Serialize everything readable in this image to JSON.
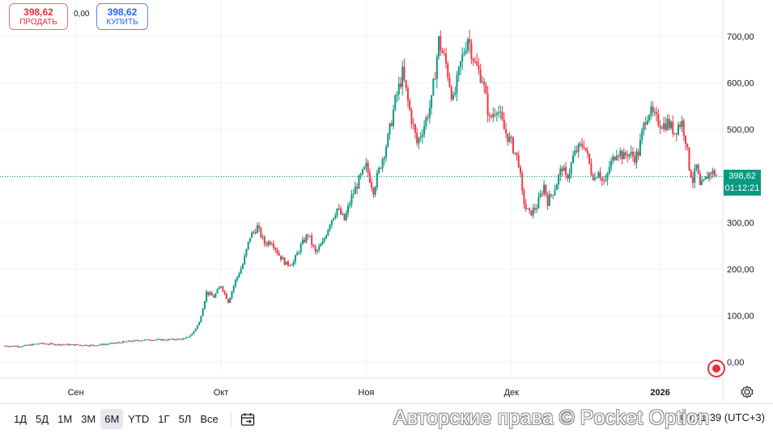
{
  "trade": {
    "sell_price": "398,62",
    "sell_label": "ПРОДАТЬ",
    "buy_price": "398,62",
    "buy_label": "КУПИТЬ",
    "spread": "0,00"
  },
  "last_price": {
    "value": "398,62",
    "countdown": "01:12:21",
    "color": "#089981"
  },
  "colors": {
    "up": "#089981",
    "down": "#f23645",
    "grid": "#f0f3fa",
    "sell": "#e0313b",
    "buy": "#2962ff"
  },
  "chart_data": {
    "type": "candlestick",
    "title": "",
    "x_tick_labels": [
      "Сен",
      "Окт",
      "Ноя",
      "Дек",
      "2026"
    ],
    "y_tick_labels": [
      "700,00",
      "600,00",
      "500,00",
      "400,00",
      "300,00",
      "200,00",
      "100,00",
      "0,00"
    ],
    "ylim": [
      -30,
      760
    ],
    "grid": true,
    "last_price": 398.62,
    "series": [
      {
        "close_path": [
          [
            0,
            35
          ],
          [
            5,
            34
          ],
          [
            10,
            40
          ],
          [
            15,
            38
          ],
          [
            20,
            37
          ],
          [
            25,
            36
          ],
          [
            30,
            40
          ],
          [
            35,
            45
          ],
          [
            40,
            48
          ],
          [
            45,
            48
          ],
          [
            50,
            50
          ],
          [
            52,
            60
          ],
          [
            54,
            85
          ],
          [
            56,
            150
          ],
          [
            58,
            140
          ],
          [
            60,
            165
          ],
          [
            62,
            130
          ],
          [
            64,
            175
          ],
          [
            66,
            210
          ],
          [
            68,
            270
          ],
          [
            70,
            290
          ],
          [
            72,
            255
          ],
          [
            74,
            260
          ],
          [
            76,
            230
          ],
          [
            78,
            210
          ],
          [
            80,
            215
          ],
          [
            82,
            250
          ],
          [
            84,
            275
          ],
          [
            86,
            235
          ],
          [
            88,
            255
          ],
          [
            90,
            300
          ],
          [
            92,
            330
          ],
          [
            94,
            305
          ],
          [
            96,
            355
          ],
          [
            98,
            390
          ],
          [
            100,
            420
          ],
          [
            102,
            370
          ],
          [
            104,
            425
          ],
          [
            106,
            480
          ],
          [
            108,
            560
          ],
          [
            110,
            620
          ],
          [
            112,
            540
          ],
          [
            114,
            470
          ],
          [
            116,
            510
          ],
          [
            118,
            560
          ],
          [
            120,
            690
          ],
          [
            122,
            640
          ],
          [
            124,
            560
          ],
          [
            126,
            640
          ],
          [
            128,
            700
          ],
          [
            130,
            640
          ],
          [
            132,
            610
          ],
          [
            134,
            520
          ],
          [
            136,
            550
          ],
          [
            138,
            500
          ],
          [
            140,
            470
          ],
          [
            142,
            430
          ],
          [
            143,
            360
          ],
          [
            144,
            330
          ],
          [
            145,
            318
          ],
          [
            147,
            335
          ],
          [
            149,
            380
          ],
          [
            150,
            345
          ],
          [
            151,
            360
          ],
          [
            152,
            375
          ],
          [
            154,
            420
          ],
          [
            155,
            395
          ],
          [
            156,
            410
          ],
          [
            157,
            440
          ],
          [
            158,
            455
          ],
          [
            160,
            470
          ],
          [
            161,
            440
          ],
          [
            162,
            410
          ],
          [
            163,
            395
          ],
          [
            164,
            415
          ],
          [
            165,
            390
          ],
          [
            166,
            385
          ],
          [
            167,
            420
          ],
          [
            168,
            435
          ],
          [
            169,
            455
          ],
          [
            170,
            450
          ],
          [
            171,
            440
          ],
          [
            172,
            450
          ],
          [
            173,
            445
          ],
          [
            174,
            440
          ],
          [
            175,
            450
          ],
          [
            176,
            490
          ],
          [
            177,
            525
          ],
          [
            178,
            540
          ],
          [
            179,
            530
          ],
          [
            180,
            520
          ],
          [
            181,
            515
          ],
          [
            182,
            510
          ],
          [
            183,
            515
          ],
          [
            184,
            505
          ],
          [
            185,
            495
          ],
          [
            186,
            510
          ],
          [
            187,
            515
          ],
          [
            188,
            480
          ],
          [
            189,
            420
          ],
          [
            190,
            390
          ],
          [
            191,
            420
          ],
          [
            192,
            375
          ],
          [
            193,
            385
          ],
          [
            194,
            400
          ],
          [
            195,
            410
          ],
          [
            196,
            405
          ],
          [
            196.7,
            398.62
          ]
        ]
      }
    ]
  },
  "toolbar": {
    "ranges": [
      "1Д",
      "5Д",
      "1М",
      "3М",
      "6М",
      "YTD",
      "1Г",
      "5Л",
      "Все"
    ],
    "active_range": "6М",
    "clock": "09:41:39 (UTC+3)"
  },
  "watermark": "Авторские права © Pocket Option",
  "icons": {
    "calendar": "calendar-range-icon",
    "settings": "gear-icon",
    "brand": "pocket-option-logo-icon"
  }
}
